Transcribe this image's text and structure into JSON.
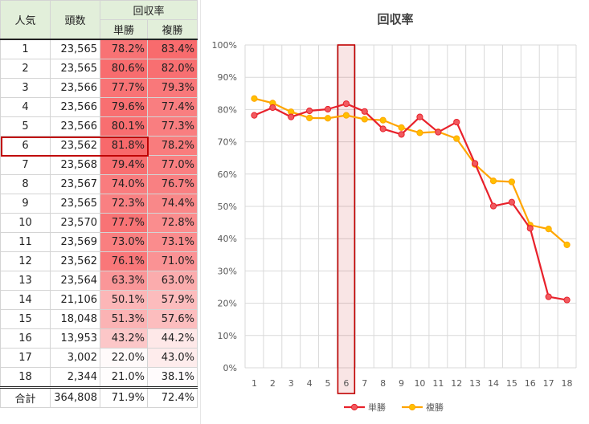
{
  "table": {
    "header_popularity": "人気",
    "header_count": "頭数",
    "header_return": "回収率",
    "header_win": "単勝",
    "header_place": "複勝",
    "highlight_color": "#c00000",
    "rows": [
      {
        "pop": "1",
        "count": "23,565",
        "win": "78.2%",
        "place": "83.4%"
      },
      {
        "pop": "2",
        "count": "23,565",
        "win": "80.6%",
        "place": "82.0%"
      },
      {
        "pop": "3",
        "count": "23,566",
        "win": "77.7%",
        "place": "79.3%"
      },
      {
        "pop": "4",
        "count": "23,566",
        "win": "79.6%",
        "place": "77.4%"
      },
      {
        "pop": "5",
        "count": "23,566",
        "win": "80.1%",
        "place": "77.3%"
      },
      {
        "pop": "6",
        "count": "23,562",
        "win": "81.8%",
        "place": "78.2%"
      },
      {
        "pop": "7",
        "count": "23,568",
        "win": "79.4%",
        "place": "77.0%"
      },
      {
        "pop": "8",
        "count": "23,567",
        "win": "74.0%",
        "place": "76.7%"
      },
      {
        "pop": "9",
        "count": "23,565",
        "win": "72.3%",
        "place": "74.4%"
      },
      {
        "pop": "10",
        "count": "23,570",
        "win": "77.7%",
        "place": "72.8%"
      },
      {
        "pop": "11",
        "count": "23,569",
        "win": "73.0%",
        "place": "73.1%"
      },
      {
        "pop": "12",
        "count": "23,562",
        "win": "76.1%",
        "place": "71.0%"
      },
      {
        "pop": "13",
        "count": "23,564",
        "win": "63.3%",
        "place": "63.0%"
      },
      {
        "pop": "14",
        "count": "21,106",
        "win": "50.1%",
        "place": "57.9%"
      },
      {
        "pop": "15",
        "count": "18,048",
        "win": "51.3%",
        "place": "57.6%"
      },
      {
        "pop": "16",
        "count": "13,953",
        "win": "43.2%",
        "place": "44.2%"
      },
      {
        "pop": "17",
        "count": "3,002",
        "win": "22.0%",
        "place": "43.0%"
      },
      {
        "pop": "18",
        "count": "2,344",
        "win": "21.0%",
        "place": "38.1%"
      }
    ],
    "total": {
      "pop": "合計",
      "count": "364,808",
      "win": "71.9%",
      "place": "72.4%"
    }
  },
  "chart_data": {
    "type": "line",
    "title": "回収率",
    "x": [
      1,
      2,
      3,
      4,
      5,
      6,
      7,
      8,
      9,
      10,
      11,
      12,
      13,
      14,
      15,
      16,
      17,
      18
    ],
    "xticks": [
      "1",
      "2",
      "3",
      "4",
      "5",
      "6",
      "7",
      "8",
      "9",
      "10",
      "11",
      "12",
      "13",
      "14",
      "15",
      "16",
      "17",
      "18"
    ],
    "yticks": [
      "0%",
      "10%",
      "20%",
      "30%",
      "40%",
      "50%",
      "60%",
      "70%",
      "80%",
      "90%",
      "100%"
    ],
    "ylim": [
      0,
      100
    ],
    "grid": true,
    "legend": "bottom",
    "highlight_x": 6,
    "series": [
      {
        "name": "単勝",
        "color": "#e8212b",
        "marker_fill": "#f15a5f",
        "values": [
          78.2,
          80.6,
          77.7,
          79.6,
          80.1,
          81.8,
          79.4,
          74.0,
          72.3,
          77.7,
          73.0,
          76.1,
          63.3,
          50.1,
          51.3,
          43.2,
          22.0,
          21.0
        ]
      },
      {
        "name": "複勝",
        "color": "#ffa500",
        "marker_fill": "#ffc000",
        "values": [
          83.4,
          82.0,
          79.3,
          77.4,
          77.3,
          78.2,
          77.0,
          76.7,
          74.4,
          72.8,
          73.1,
          71.0,
          63.0,
          57.9,
          57.6,
          44.2,
          43.0,
          38.1
        ]
      }
    ]
  }
}
